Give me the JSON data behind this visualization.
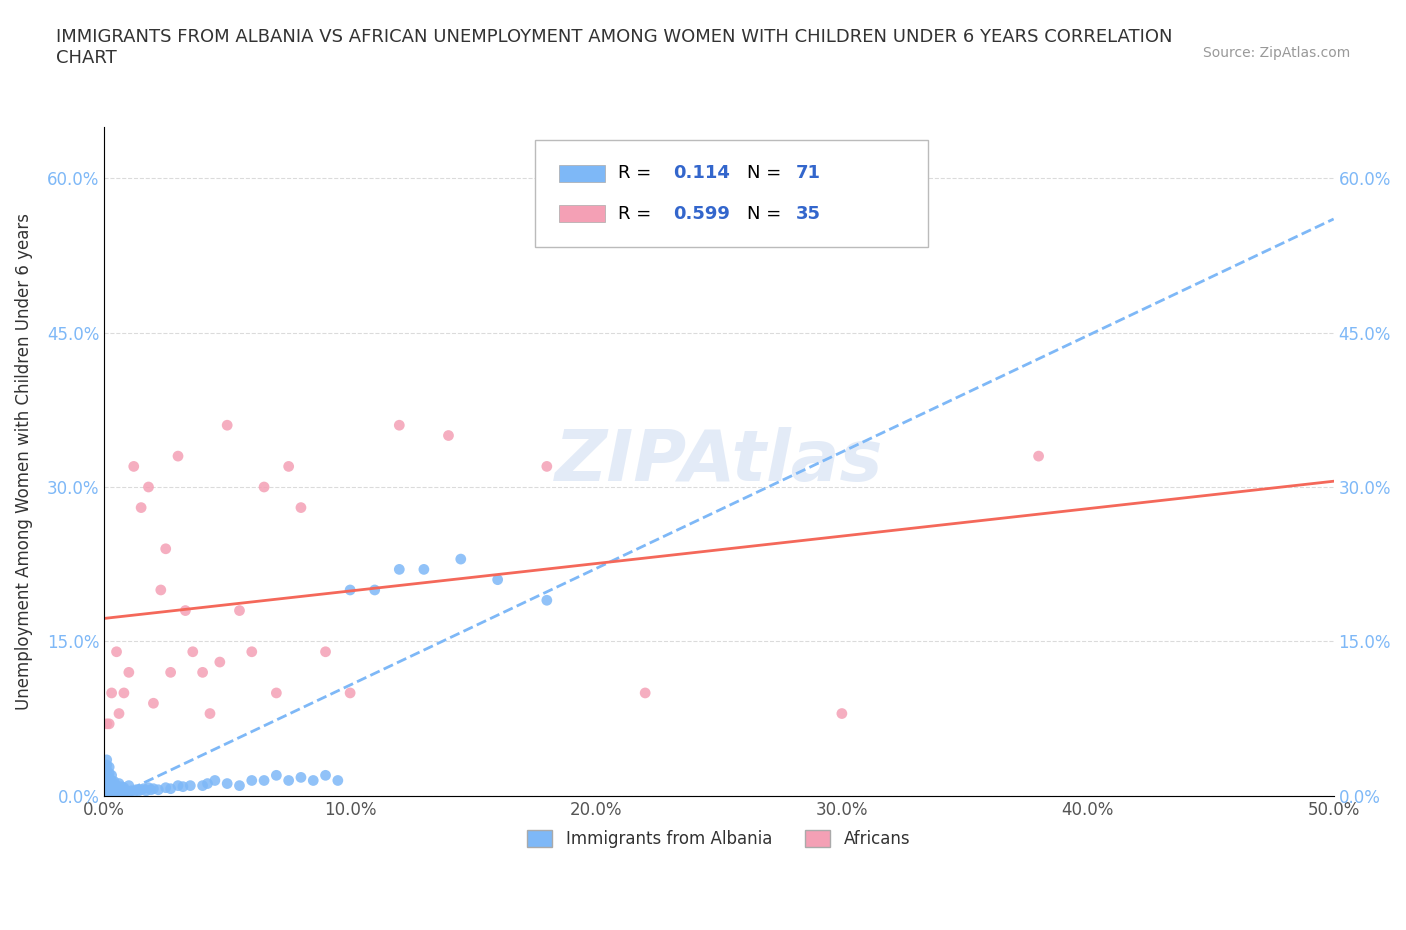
{
  "title": "IMMIGRANTS FROM ALBANIA VS AFRICAN UNEMPLOYMENT AMONG WOMEN WITH CHILDREN UNDER 6 YEARS CORRELATION\nCHART",
  "source": "Source: ZipAtlas.com",
  "ylabel": "Unemployment Among Women with Children Under 6 years",
  "xlabel": "",
  "xlim": [
    0,
    0.5
  ],
  "ylim": [
    0,
    0.65
  ],
  "xticks": [
    0.0,
    0.1,
    0.2,
    0.3,
    0.4,
    0.5
  ],
  "yticks": [
    0.0,
    0.15,
    0.3,
    0.45,
    0.6
  ],
  "ytick_labels": [
    "0.0%",
    "15.0%",
    "30.0%",
    "45.0%",
    "60.0%"
  ],
  "xtick_labels": [
    "0.0%",
    "10.0%",
    "20.0%",
    "30.0%",
    "40.0%",
    "50.0%"
  ],
  "albania_color": "#7EB8F7",
  "african_color": "#F4A0B5",
  "albania_trend_color": "#7EB8F7",
  "african_trend_color": "#F4685A",
  "R_albania": 0.114,
  "N_albania": 71,
  "R_african": 0.599,
  "N_african": 35,
  "watermark": "ZIPAtlas",
  "watermark_color": "#C8D8F0",
  "legend_labels": [
    "Immigrants from Albania",
    "Africans"
  ],
  "albania_x": [
    0.001,
    0.001,
    0.001,
    0.001,
    0.001,
    0.001,
    0.001,
    0.001,
    0.001,
    0.002,
    0.002,
    0.002,
    0.002,
    0.002,
    0.002,
    0.003,
    0.003,
    0.003,
    0.003,
    0.003,
    0.004,
    0.004,
    0.004,
    0.005,
    0.005,
    0.006,
    0.006,
    0.006,
    0.007,
    0.007,
    0.008,
    0.008,
    0.009,
    0.01,
    0.01,
    0.011,
    0.012,
    0.013,
    0.014,
    0.015,
    0.016,
    0.017,
    0.018,
    0.019,
    0.02,
    0.022,
    0.025,
    0.027,
    0.03,
    0.032,
    0.035,
    0.04,
    0.042,
    0.045,
    0.05,
    0.055,
    0.06,
    0.065,
    0.07,
    0.075,
    0.08,
    0.085,
    0.09,
    0.095,
    0.1,
    0.11,
    0.12,
    0.13,
    0.145,
    0.16,
    0.18
  ],
  "albania_y": [
    0.001,
    0.003,
    0.005,
    0.01,
    0.015,
    0.02,
    0.025,
    0.03,
    0.035,
    0.005,
    0.008,
    0.012,
    0.018,
    0.022,
    0.028,
    0.003,
    0.006,
    0.01,
    0.015,
    0.02,
    0.004,
    0.008,
    0.014,
    0.005,
    0.01,
    0.003,
    0.007,
    0.012,
    0.004,
    0.009,
    0.003,
    0.008,
    0.005,
    0.004,
    0.01,
    0.005,
    0.004,
    0.006,
    0.005,
    0.006,
    0.007,
    0.005,
    0.008,
    0.006,
    0.007,
    0.006,
    0.008,
    0.007,
    0.01,
    0.009,
    0.01,
    0.01,
    0.012,
    0.015,
    0.012,
    0.01,
    0.015,
    0.015,
    0.02,
    0.015,
    0.018,
    0.015,
    0.02,
    0.015,
    0.2,
    0.2,
    0.22,
    0.22,
    0.23,
    0.21,
    0.19
  ],
  "african_x": [
    0.001,
    0.002,
    0.003,
    0.005,
    0.006,
    0.008,
    0.01,
    0.012,
    0.015,
    0.018,
    0.02,
    0.023,
    0.025,
    0.027,
    0.03,
    0.033,
    0.036,
    0.04,
    0.043,
    0.047,
    0.05,
    0.055,
    0.06,
    0.065,
    0.07,
    0.075,
    0.08,
    0.09,
    0.1,
    0.12,
    0.14,
    0.18,
    0.22,
    0.3,
    0.38
  ],
  "african_y": [
    0.07,
    0.07,
    0.1,
    0.14,
    0.08,
    0.1,
    0.12,
    0.32,
    0.28,
    0.3,
    0.09,
    0.2,
    0.24,
    0.12,
    0.33,
    0.18,
    0.14,
    0.12,
    0.08,
    0.13,
    0.36,
    0.18,
    0.14,
    0.3,
    0.1,
    0.32,
    0.28,
    0.14,
    0.1,
    0.36,
    0.35,
    0.32,
    0.1,
    0.08,
    0.33
  ]
}
